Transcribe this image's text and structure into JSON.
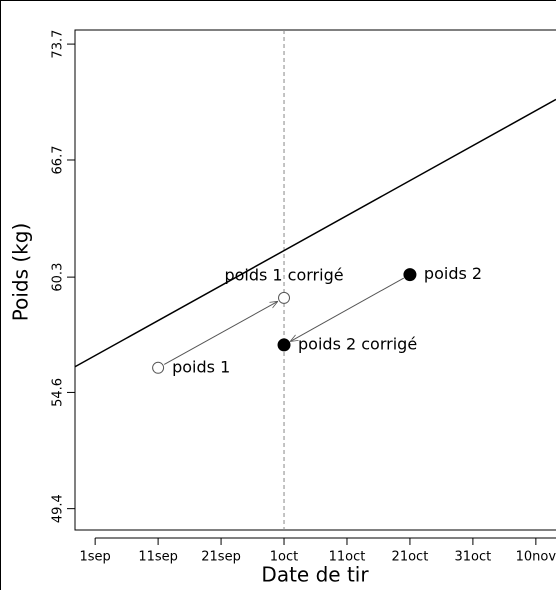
{
  "chart_data": {
    "type": "scatter",
    "xlabel": "Date de tir",
    "ylabel": "Poids (kg)",
    "ylog": true,
    "xlim": [
      -3.2,
      73.2
    ],
    "ylim": [
      48.5,
      74.6
    ],
    "xticks": [
      {
        "value": 0,
        "label": "1sep"
      },
      {
        "value": 10,
        "label": "11sep"
      },
      {
        "value": 20,
        "label": "21sep"
      },
      {
        "value": 30,
        "label": "1oct"
      },
      {
        "value": 40,
        "label": "11oct"
      },
      {
        "value": 50,
        "label": "21oct"
      },
      {
        "value": 60,
        "label": "31oct"
      },
      {
        "value": 70,
        "label": "10nov"
      }
    ],
    "yticks": [
      49.4,
      54.6,
      60.3,
      66.7,
      73.7
    ],
    "reference_x": 30,
    "trend": {
      "x": [
        -3.2,
        73.2
      ],
      "y": [
        55.82,
        70.27
      ],
      "color": "#000000"
    },
    "points": [
      {
        "label": "poids 1",
        "x": 10,
        "y": 55.77,
        "filled": false
      },
      {
        "label": "poids 1 corrigé",
        "x": 30,
        "y": 59.23,
        "filled": false
      },
      {
        "label": "poids 2 corrigé",
        "x": 30,
        "y": 56.88,
        "filled": true
      },
      {
        "label": "poids 2",
        "x": 50,
        "y": 60.43,
        "filled": true
      }
    ],
    "arrows": [
      [
        0,
        1
      ],
      [
        3,
        2
      ]
    ]
  }
}
